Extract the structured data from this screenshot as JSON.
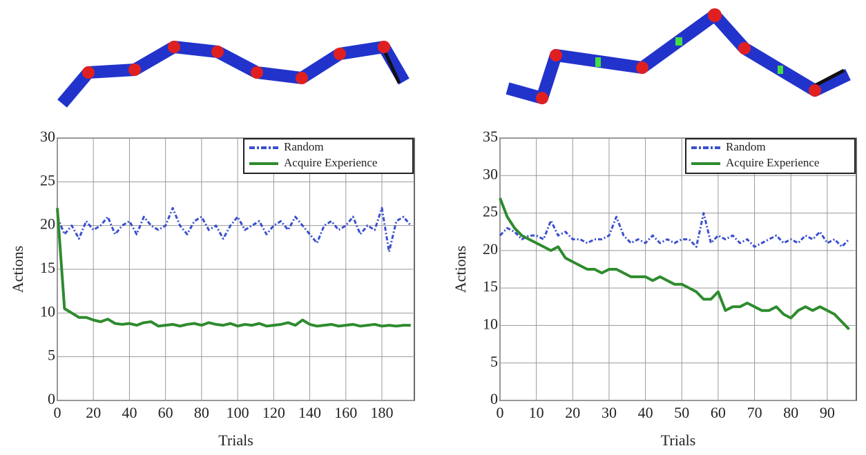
{
  "chart_data": [
    {
      "type": "line",
      "xlabel": "Trials",
      "ylabel": "Actions",
      "x": [
        0,
        4,
        8,
        12,
        16,
        20,
        24,
        28,
        32,
        36,
        40,
        44,
        48,
        52,
        56,
        60,
        64,
        68,
        72,
        76,
        80,
        84,
        88,
        92,
        96,
        100,
        104,
        108,
        112,
        116,
        120,
        124,
        128,
        132,
        136,
        140,
        144,
        148,
        152,
        156,
        160,
        164,
        168,
        172,
        176,
        180,
        184,
        188,
        192,
        196
      ],
      "series": [
        {
          "name": "Random",
          "color": "#3a4fd0",
          "dashed": true,
          "values": [
            21,
            19,
            20,
            18.5,
            20.5,
            19.5,
            20,
            21,
            19,
            20,
            20.5,
            19,
            21,
            20,
            19.5,
            20,
            22,
            20,
            19,
            20.5,
            21,
            19.5,
            20,
            18.5,
            20,
            21,
            19.5,
            20,
            20.5,
            19,
            20,
            20.5,
            19.5,
            21,
            20,
            19,
            18,
            20,
            20.5,
            19.5,
            20,
            21,
            19,
            20,
            19.5,
            22,
            17,
            20.5,
            21,
            20
          ]
        },
        {
          "name": "Acquire Experience",
          "color": "#2e8b2e",
          "dashed": false,
          "values": [
            22,
            10.5,
            10,
            9.5,
            9.5,
            9.2,
            9,
            9.3,
            8.8,
            8.7,
            8.8,
            8.6,
            8.9,
            9,
            8.5,
            8.6,
            8.7,
            8.5,
            8.7,
            8.8,
            8.6,
            8.9,
            8.7,
            8.6,
            8.8,
            8.5,
            8.7,
            8.6,
            8.8,
            8.5,
            8.6,
            8.7,
            8.9,
            8.6,
            9.2,
            8.7,
            8.5,
            8.6,
            8.7,
            8.5,
            8.6,
            8.7,
            8.5,
            8.6,
            8.7,
            8.5,
            8.6,
            8.5,
            8.6,
            8.6
          ]
        }
      ],
      "xlim": [
        0,
        198
      ],
      "ylim": [
        0,
        30
      ],
      "xticks": [
        0,
        20,
        40,
        60,
        80,
        100,
        120,
        140,
        160,
        180
      ],
      "yticks": [
        0,
        5,
        10,
        15,
        20,
        25,
        30
      ],
      "grid": true,
      "legend": "upper-right"
    },
    {
      "type": "line",
      "xlabel": "Trials",
      "ylabel": "Actions",
      "x": [
        0,
        2,
        4,
        6,
        8,
        10,
        12,
        14,
        16,
        18,
        20,
        22,
        24,
        26,
        28,
        30,
        32,
        34,
        36,
        38,
        40,
        42,
        44,
        46,
        48,
        50,
        52,
        54,
        56,
        58,
        60,
        62,
        64,
        66,
        68,
        70,
        72,
        74,
        76,
        78,
        80,
        82,
        84,
        86,
        88,
        90,
        92,
        94,
        96
      ],
      "series": [
        {
          "name": "Random",
          "color": "#3a4fd0",
          "dashed": true,
          "values": [
            22,
            23,
            22.5,
            21.5,
            22,
            22,
            21.5,
            24,
            22,
            22.5,
            21.5,
            21.5,
            21,
            21.5,
            21.5,
            22,
            24.5,
            22,
            21,
            21.5,
            21,
            22,
            21,
            21.5,
            21,
            21.5,
            21.5,
            20.5,
            25,
            21,
            22,
            21.5,
            22,
            21,
            21.5,
            20.5,
            21,
            21.5,
            22,
            21,
            21.5,
            21,
            22,
            21.5,
            22.5,
            21,
            21.5,
            20.5,
            21.5
          ]
        },
        {
          "name": "Acquire Experience",
          "color": "#2e8b2e",
          "dashed": false,
          "values": [
            27,
            24.5,
            23,
            22,
            21.5,
            21,
            20.5,
            20,
            20.5,
            19,
            18.5,
            18,
            17.5,
            17.5,
            17,
            17.5,
            17.5,
            17,
            16.5,
            16.5,
            16.5,
            16,
            16.5,
            16,
            15.5,
            15.5,
            15,
            14.5,
            13.5,
            13.5,
            14.5,
            12,
            12.5,
            12.5,
            13,
            12.5,
            12,
            12,
            12.5,
            11.5,
            11,
            12,
            12.5,
            12,
            12.5,
            12,
            11.5,
            10.5,
            9.5
          ]
        }
      ],
      "xlim": [
        0,
        98
      ],
      "ylim": [
        0,
        35
      ],
      "xticks": [
        0,
        10,
        20,
        30,
        40,
        50,
        60,
        70,
        80,
        90
      ],
      "yticks": [
        0,
        5,
        10,
        15,
        20,
        25,
        30,
        35
      ],
      "grid": true,
      "legend": "upper-right"
    }
  ]
}
